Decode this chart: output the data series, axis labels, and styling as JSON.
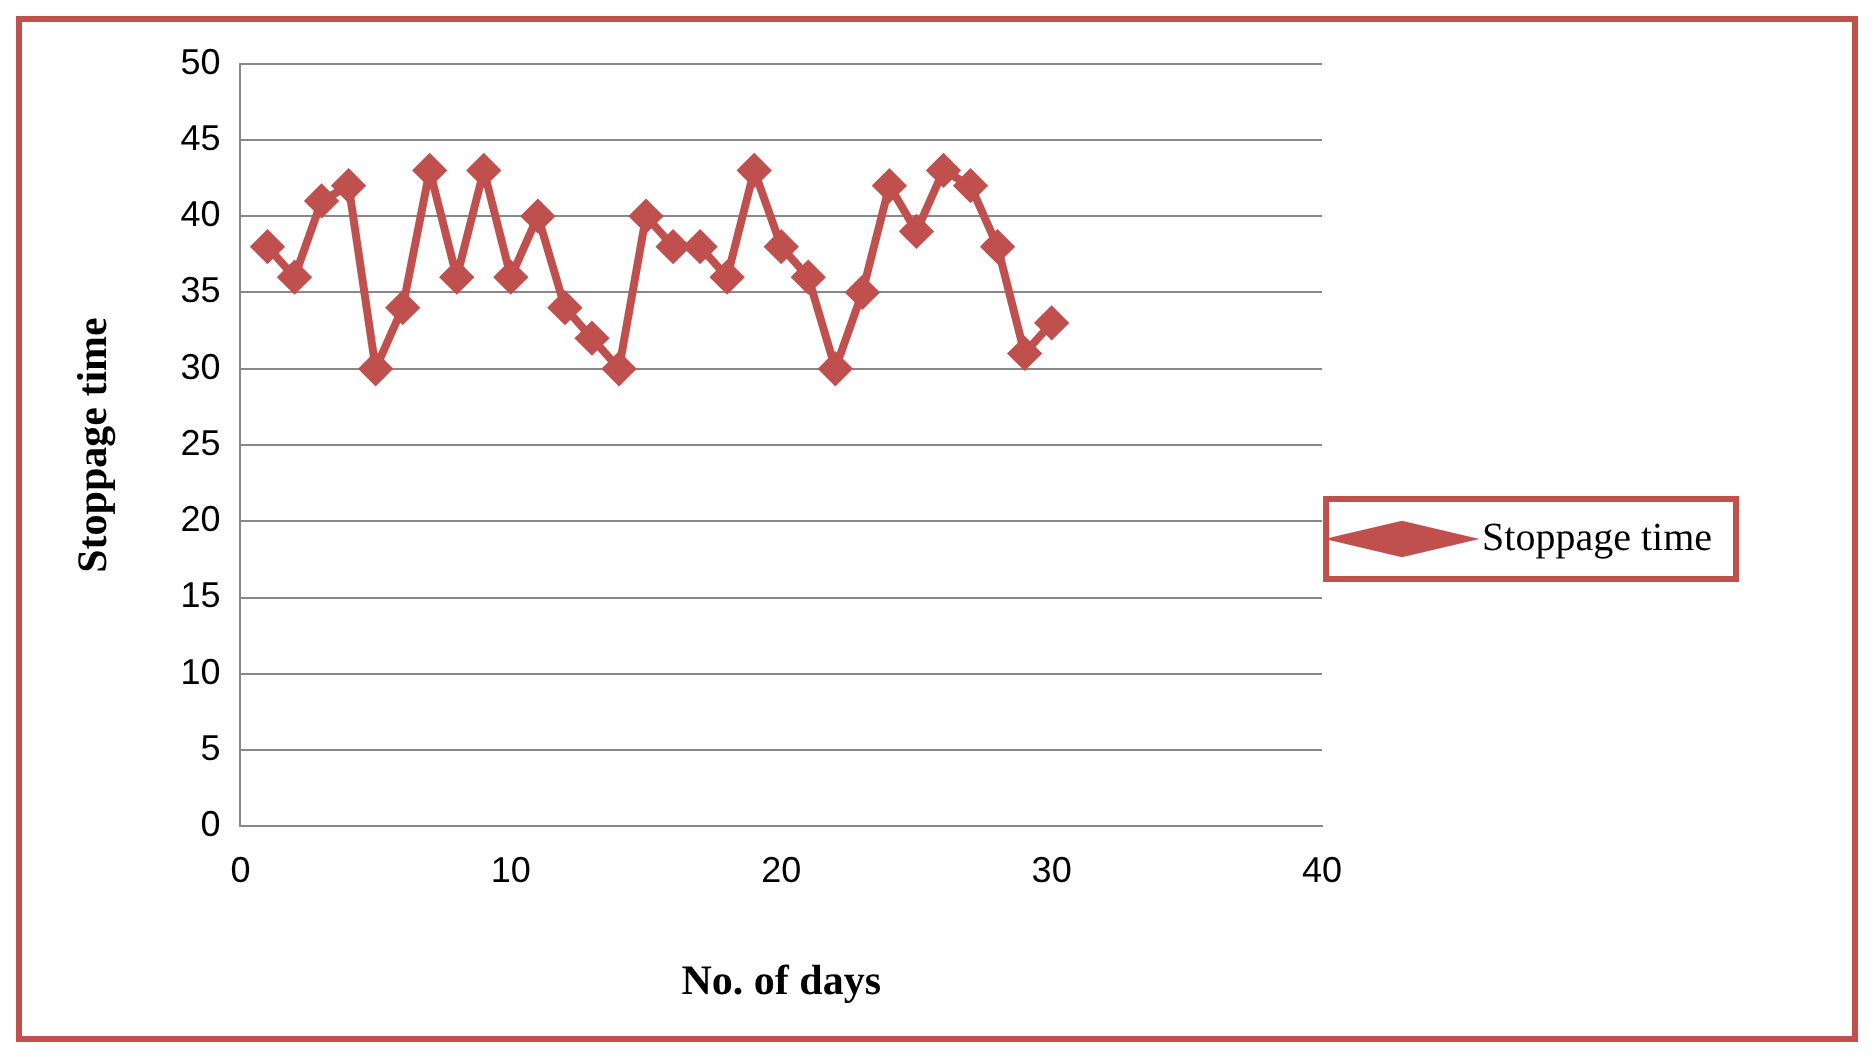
{
  "chart_data": {
    "type": "line",
    "xlabel": "No. of days",
    "ylabel": "Stoppage time",
    "x": [
      1,
      2,
      3,
      4,
      5,
      6,
      7,
      8,
      9,
      10,
      11,
      12,
      13,
      14,
      15,
      16,
      17,
      18,
      19,
      20,
      21,
      22,
      23,
      24,
      25,
      26,
      27,
      28,
      29,
      30
    ],
    "series": [
      {
        "name": "Stoppage time",
        "color": "#c0504d",
        "values": [
          38,
          36,
          41,
          42,
          30,
          34,
          43,
          36,
          43,
          36,
          40,
          34,
          32,
          30,
          40,
          38,
          38,
          36,
          43,
          38,
          36,
          30,
          35,
          42,
          39,
          43,
          42,
          38,
          31,
          33
        ]
      }
    ],
    "xlim": [
      0,
      40
    ],
    "xticks": [
      0,
      10,
      20,
      30,
      40
    ],
    "ylim": [
      0,
      50
    ],
    "yticks": [
      0,
      5,
      10,
      15,
      20,
      25,
      30,
      35,
      40,
      45,
      50
    ],
    "grid": "y",
    "legend": "right",
    "marker": "diamond",
    "line_style": "solid"
  }
}
